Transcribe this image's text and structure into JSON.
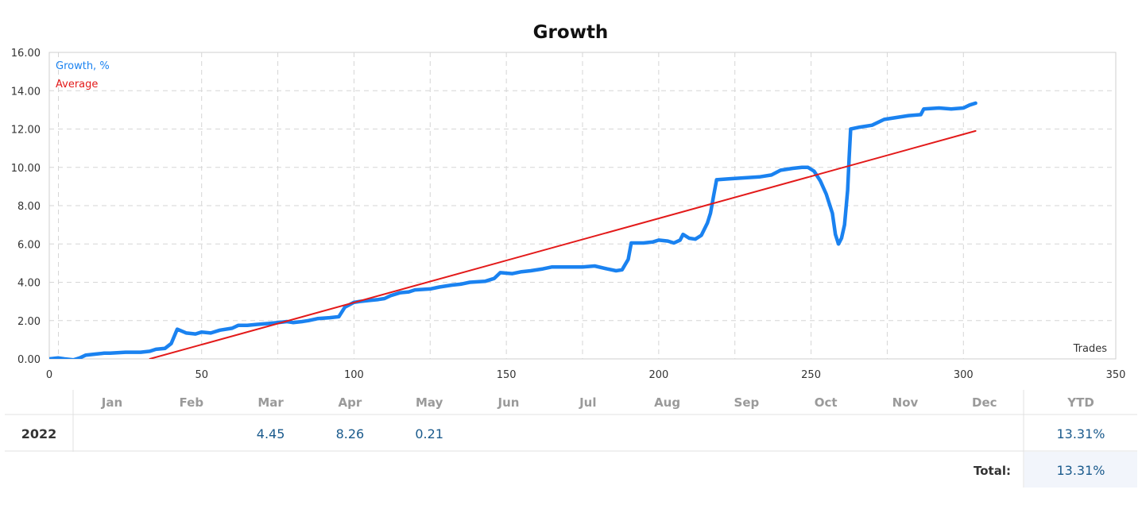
{
  "chart_data": {
    "type": "line",
    "title": "Growth",
    "xlabel": "Trades",
    "ylabel": "",
    "xlim": [
      0,
      350
    ],
    "ylim": [
      0,
      16
    ],
    "x_ticks": [
      0,
      50,
      100,
      150,
      200,
      250,
      300,
      350
    ],
    "y_ticks": [
      "0.00",
      "2.00",
      "4.00",
      "6.00",
      "8.00",
      "10.00",
      "12.00",
      "14.00",
      "16.00"
    ],
    "month_markers": [
      {
        "label": "Jan",
        "x": 3
      },
      {
        "label": "Feb",
        "x": 50
      },
      {
        "label": "Mar",
        "x": 75
      },
      {
        "label": "Apr",
        "x": 100
      },
      {
        "label": "May",
        "x": 125
      },
      {
        "label": "Jun",
        "x": 150
      },
      {
        "label": "Jul",
        "x": 175
      },
      {
        "label": "Aug",
        "x": 200
      },
      {
        "label": "Sep",
        "x": 225
      },
      {
        "label": "Oct",
        "x": 250
      },
      {
        "label": "Nov",
        "x": 275
      },
      {
        "label": "Dec",
        "x": 300
      }
    ],
    "grid": true,
    "legend_position": "top-left",
    "series": [
      {
        "name": "Growth, %",
        "color": "#1a82f0",
        "points": [
          [
            0,
            0.0
          ],
          [
            3,
            0.05
          ],
          [
            5,
            0.0
          ],
          [
            8,
            -0.05
          ],
          [
            10,
            0.05
          ],
          [
            12,
            0.2
          ],
          [
            15,
            0.25
          ],
          [
            18,
            0.3
          ],
          [
            20,
            0.3
          ],
          [
            25,
            0.35
          ],
          [
            30,
            0.35
          ],
          [
            33,
            0.4
          ],
          [
            35,
            0.5
          ],
          [
            38,
            0.55
          ],
          [
            40,
            0.8
          ],
          [
            42,
            1.55
          ],
          [
            45,
            1.35
          ],
          [
            48,
            1.3
          ],
          [
            50,
            1.4
          ],
          [
            53,
            1.35
          ],
          [
            56,
            1.5
          ],
          [
            60,
            1.6
          ],
          [
            62,
            1.75
          ],
          [
            65,
            1.75
          ],
          [
            68,
            1.8
          ],
          [
            72,
            1.85
          ],
          [
            75,
            1.9
          ],
          [
            78,
            1.95
          ],
          [
            80,
            1.9
          ],
          [
            83,
            1.95
          ],
          [
            85,
            2.0
          ],
          [
            88,
            2.1
          ],
          [
            92,
            2.15
          ],
          [
            95,
            2.2
          ],
          [
            97,
            2.7
          ],
          [
            100,
            2.95
          ],
          [
            102,
            3.0
          ],
          [
            105,
            3.05
          ],
          [
            108,
            3.1
          ],
          [
            110,
            3.15
          ],
          [
            112,
            3.3
          ],
          [
            115,
            3.45
          ],
          [
            118,
            3.5
          ],
          [
            120,
            3.6
          ],
          [
            125,
            3.65
          ],
          [
            128,
            3.75
          ],
          [
            132,
            3.85
          ],
          [
            135,
            3.9
          ],
          [
            138,
            4.0
          ],
          [
            143,
            4.05
          ],
          [
            146,
            4.2
          ],
          [
            148,
            4.5
          ],
          [
            152,
            4.45
          ],
          [
            155,
            4.55
          ],
          [
            158,
            4.6
          ],
          [
            162,
            4.7
          ],
          [
            165,
            4.8
          ],
          [
            170,
            4.8
          ],
          [
            175,
            4.8
          ],
          [
            179,
            4.85
          ],
          [
            183,
            4.7
          ],
          [
            186,
            4.6
          ],
          [
            188,
            4.65
          ],
          [
            190,
            5.2
          ],
          [
            191,
            6.05
          ],
          [
            195,
            6.05
          ],
          [
            198,
            6.1
          ],
          [
            200,
            6.2
          ],
          [
            203,
            6.15
          ],
          [
            205,
            6.05
          ],
          [
            207,
            6.2
          ],
          [
            208,
            6.5
          ],
          [
            210,
            6.3
          ],
          [
            212,
            6.25
          ],
          [
            214,
            6.45
          ],
          [
            216,
            7.1
          ],
          [
            217,
            7.6
          ],
          [
            218,
            8.5
          ],
          [
            219,
            9.35
          ],
          [
            223,
            9.4
          ],
          [
            228,
            9.45
          ],
          [
            233,
            9.5
          ],
          [
            237,
            9.6
          ],
          [
            240,
            9.85
          ],
          [
            244,
            9.95
          ],
          [
            247,
            10.0
          ],
          [
            249,
            10.0
          ],
          [
            251,
            9.8
          ],
          [
            253,
            9.3
          ],
          [
            255,
            8.6
          ],
          [
            257,
            7.6
          ],
          [
            258,
            6.5
          ],
          [
            259,
            6.0
          ],
          [
            260,
            6.3
          ],
          [
            261,
            7.0
          ],
          [
            262,
            8.8
          ],
          [
            262.5,
            10.5
          ],
          [
            263,
            12.0
          ],
          [
            266,
            12.1
          ],
          [
            270,
            12.2
          ],
          [
            274,
            12.5
          ],
          [
            278,
            12.6
          ],
          [
            282,
            12.7
          ],
          [
            286,
            12.75
          ],
          [
            287,
            13.05
          ],
          [
            292,
            13.1
          ],
          [
            296,
            13.05
          ],
          [
            300,
            13.1
          ],
          [
            302,
            13.25
          ],
          [
            304,
            13.35
          ]
        ]
      },
      {
        "name": "Average",
        "color": "#e31a1a",
        "points": [
          [
            33,
            0.0
          ],
          [
            304,
            11.9
          ]
        ]
      }
    ]
  },
  "table": {
    "months": [
      "Jan",
      "Feb",
      "Mar",
      "Apr",
      "May",
      "Jun",
      "Jul",
      "Aug",
      "Sep",
      "Oct",
      "Nov",
      "Dec"
    ],
    "ytd_header": "YTD",
    "rows": [
      {
        "year": "2022",
        "values": [
          "",
          "",
          "4.45",
          "8.26",
          "0.21",
          "",
          "",
          "",
          "",
          "",
          "",
          ""
        ],
        "ytd": "13.31%"
      }
    ],
    "total_label": "Total:",
    "total_value": "13.31%",
    "colors": {
      "value": "#1a5a8c",
      "header": "#9a9a9a",
      "total_bg": "#f2f5fb"
    }
  }
}
